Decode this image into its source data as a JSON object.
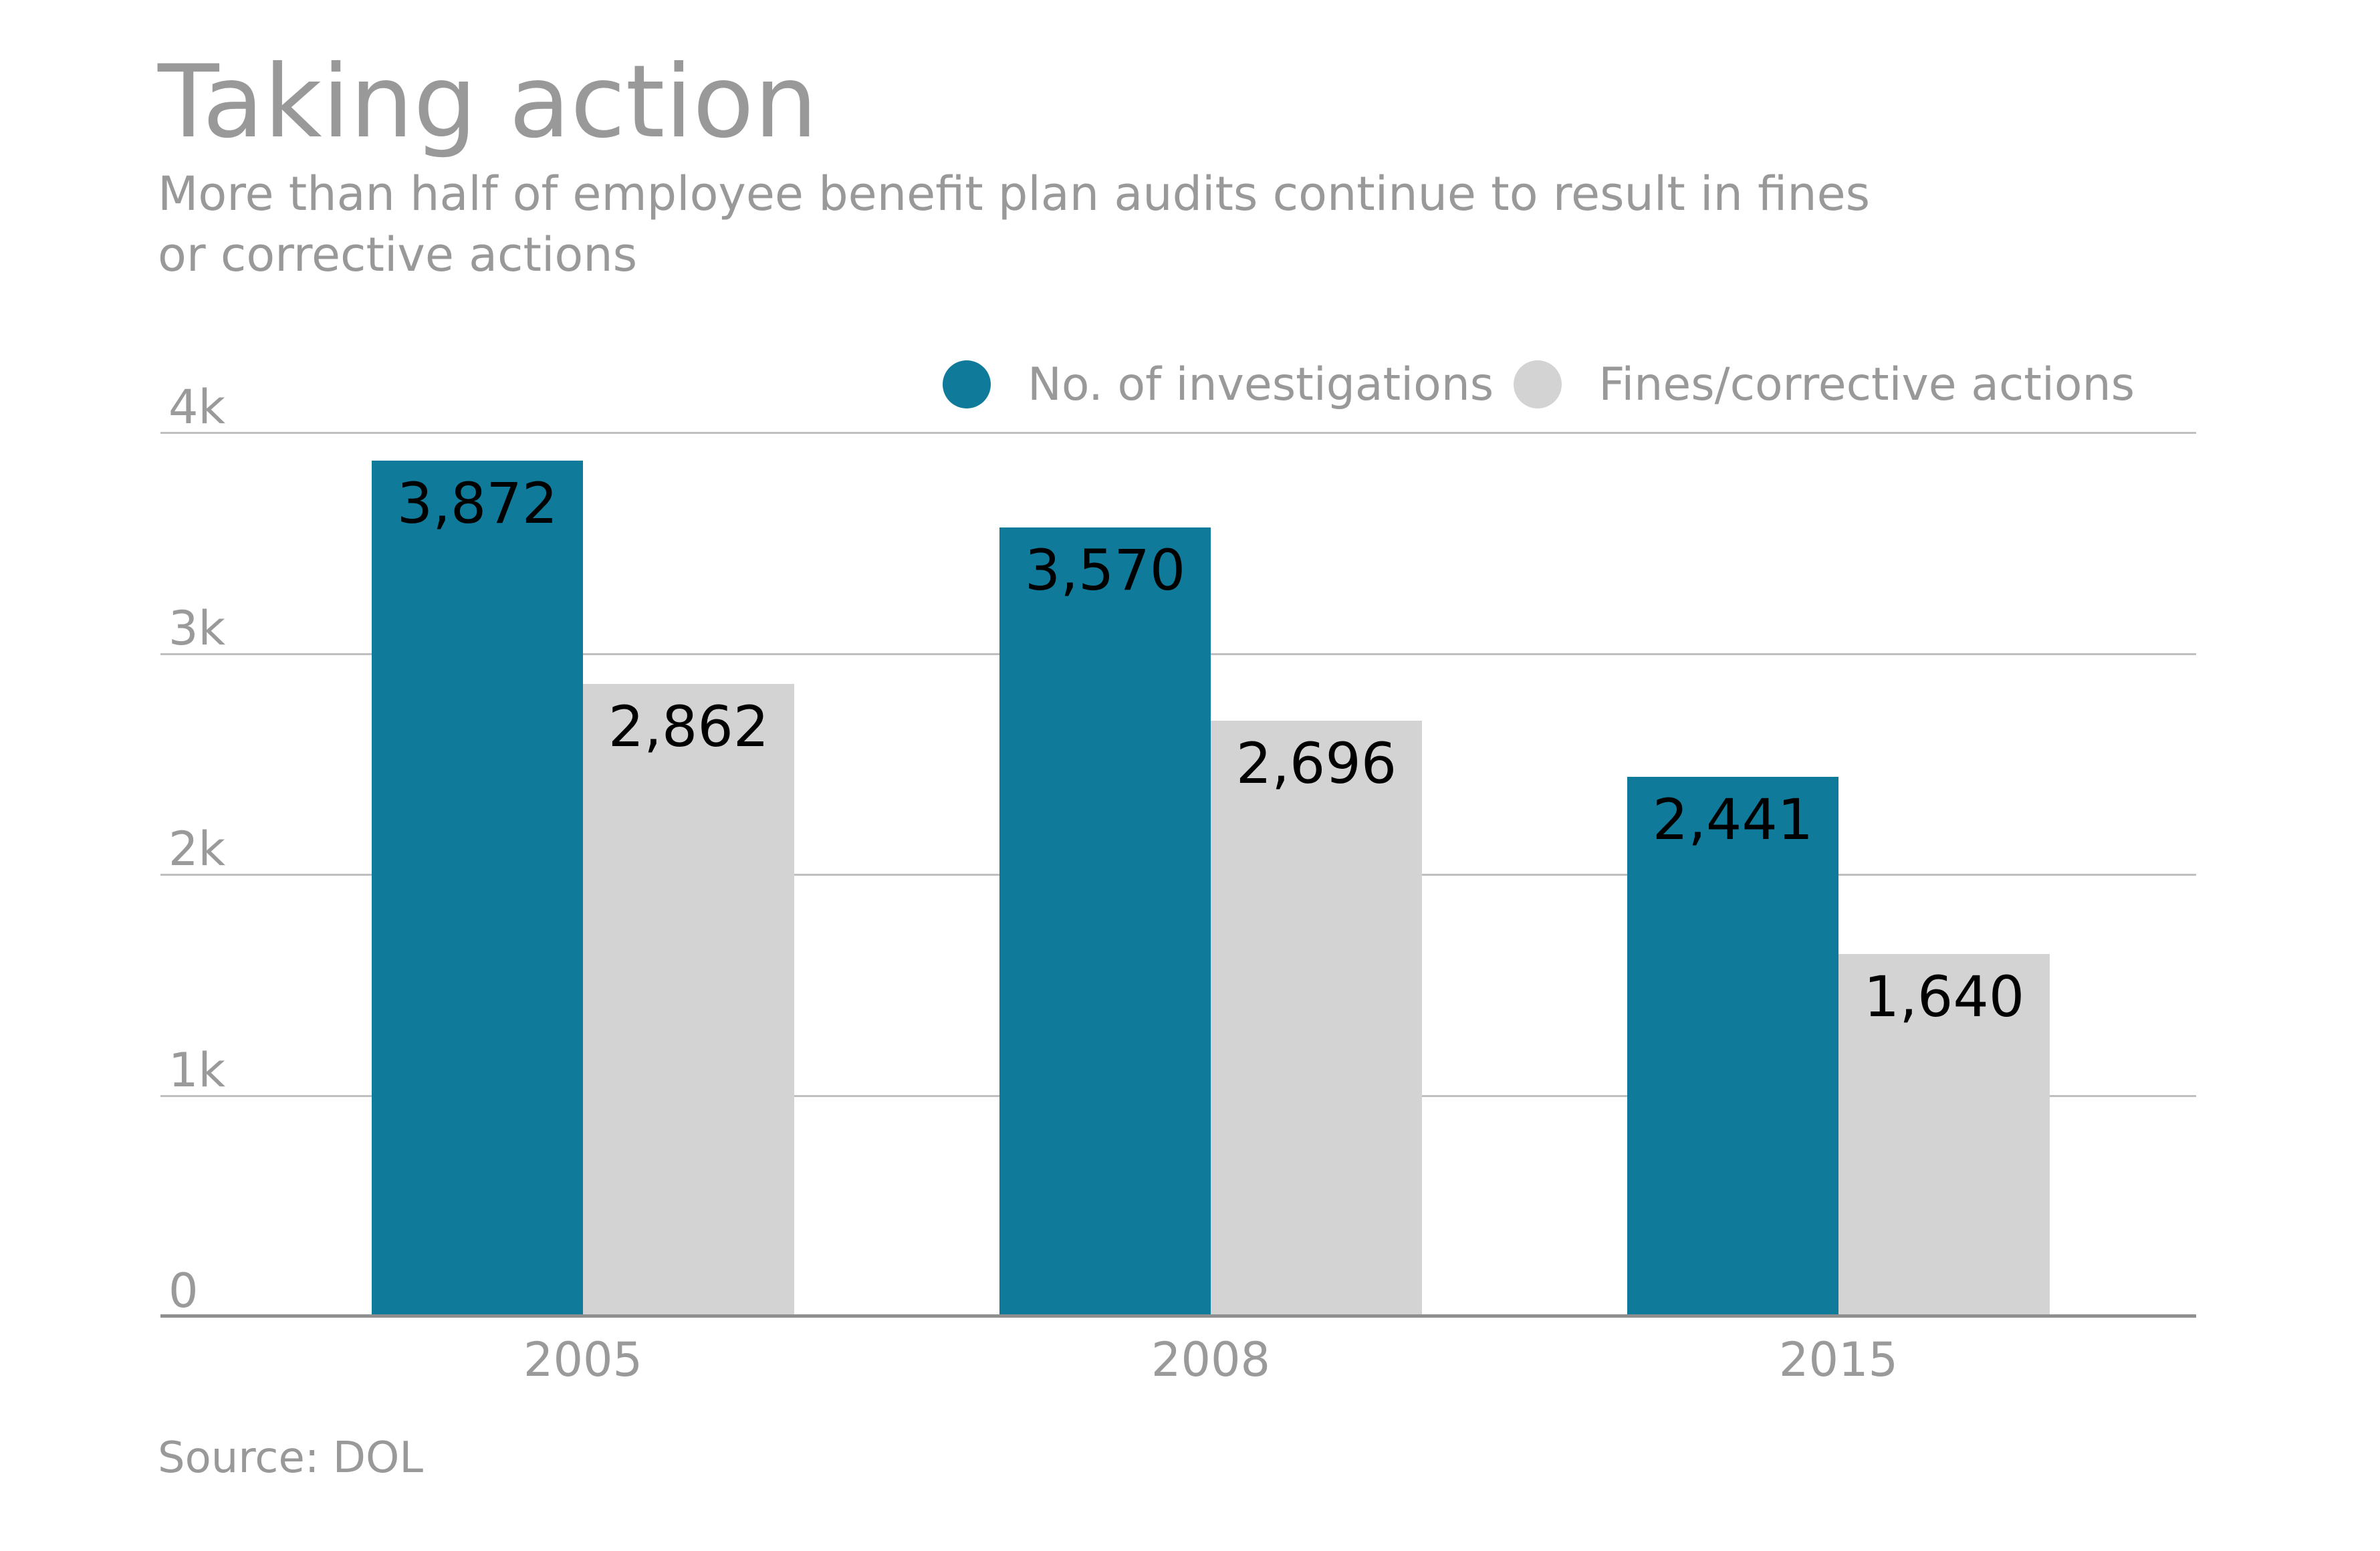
{
  "title": "Taking action",
  "subtitle": {
    "line1": "More than half of employee benefit plan audits continue to result in fines",
    "line2": "or corrective actions"
  },
  "source": "Source: DOL",
  "colors": {
    "investigations": "#107a9b",
    "fines": "#d3d3d3",
    "text_gray": "#9a9a9a",
    "gridline": "#bfbfbf",
    "axis_line": "#8f8f8f",
    "value_label": "#000000",
    "background": "#ffffff"
  },
  "chart_data": {
    "type": "bar",
    "title": "Taking action",
    "subtitle": "More than half of employee benefit plan audits continue to result in fines or corrective actions",
    "categories": [
      "2005",
      "2008",
      "2015"
    ],
    "series": [
      {
        "name": "No. of investigations",
        "color_key": "investigations",
        "values": [
          3872,
          3570,
          2441
        ],
        "labels": [
          "3,872",
          "3,570",
          "2,441"
        ]
      },
      {
        "name": "Fines/corrective actions",
        "color_key": "fines",
        "values": [
          2862,
          2696,
          1640
        ],
        "labels": [
          "2,862",
          "2,696",
          "1,640"
        ]
      }
    ],
    "ylim": [
      0,
      4000
    ],
    "yticks": [
      {
        "value": 4000,
        "label": "4k"
      },
      {
        "value": 3000,
        "label": "3k"
      },
      {
        "value": 2000,
        "label": "2k"
      },
      {
        "value": 1000,
        "label": "1k"
      },
      {
        "value": 0,
        "label": "0"
      }
    ],
    "grid": "horizontal",
    "legend_position": "top-right",
    "xlabel": "",
    "ylabel": "",
    "source": "Source: DOL"
  }
}
